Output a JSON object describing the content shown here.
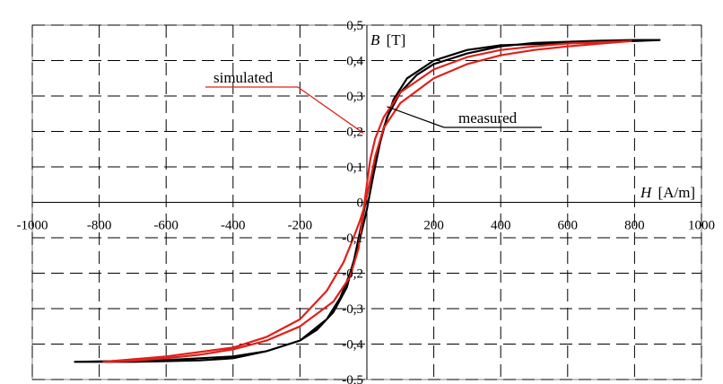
{
  "chart_data": {
    "type": "line",
    "xlabel_var": "H",
    "xlabel_unit": "[A/m]",
    "ylabel_var": "B",
    "ylabel_unit": "[T]",
    "xlim": [
      -1000,
      1000
    ],
    "ylim": [
      -0.5,
      0.5
    ],
    "x_ticks": [
      -1000,
      -800,
      -600,
      -400,
      -200,
      0,
      200,
      400,
      600,
      800,
      1000
    ],
    "x_tick_labels": [
      "-1000",
      "-800",
      "-600",
      "-400",
      "-200",
      "0",
      "200",
      "400",
      "600",
      "800",
      "1000"
    ],
    "y_ticks": [
      -0.5,
      -0.4,
      -0.3,
      -0.2,
      -0.1,
      0,
      0.1,
      0.2,
      0.3,
      0.4,
      0.5
    ],
    "y_tick_labels": [
      "-0,5",
      "-0,4",
      "-0,3",
      "-0,2",
      "-0,1",
      "0",
      "0,1",
      "0,2",
      "0,3",
      "0,4",
      "0,5"
    ],
    "grid": true,
    "grid_style": "dashed",
    "annotations": [
      {
        "text": "simulated",
        "series": "simulated"
      },
      {
        "text": "measured",
        "series": "measured"
      }
    ],
    "series": [
      {
        "name": "measured",
        "color": "#000000",
        "x": [
          -875,
          -600,
          -400,
          -300,
          -200,
          -120,
          -80,
          -50,
          -25,
          -10,
          0,
          10,
          20,
          40,
          60,
          100,
          150,
          200,
          300,
          400,
          500,
          600,
          700,
          800,
          875,
          800,
          600,
          400,
          300,
          200,
          120,
          80,
          50,
          25,
          10,
          0,
          -10,
          -20,
          -40,
          -60,
          -100,
          -150,
          -200,
          -300,
          -400,
          -500,
          -600,
          -700,
          -800,
          -875
        ],
        "y": [
          -0.45,
          -0.445,
          -0.435,
          -0.42,
          -0.39,
          -0.33,
          -0.27,
          -0.2,
          -0.12,
          -0.06,
          -0.02,
          0.03,
          0.08,
          0.17,
          0.24,
          0.31,
          0.36,
          0.39,
          0.42,
          0.44,
          0.45,
          0.453,
          0.456,
          0.458,
          0.458,
          0.455,
          0.45,
          0.443,
          0.43,
          0.4,
          0.35,
          0.29,
          0.21,
          0.12,
          0.06,
          0.02,
          -0.03,
          -0.08,
          -0.17,
          -0.24,
          -0.31,
          -0.36,
          -0.39,
          -0.42,
          -0.44,
          -0.446,
          -0.448,
          -0.45,
          -0.45,
          -0.45
        ]
      },
      {
        "name": "simulated",
        "color": "#e0201a",
        "x": [
          -790,
          -600,
          -400,
          -300,
          -200,
          -120,
          -70,
          -40,
          -20,
          -10,
          0,
          10,
          25,
          50,
          100,
          200,
          300,
          400,
          500,
          600,
          700,
          790,
          700,
          600,
          500,
          400,
          300,
          200,
          100,
          50,
          25,
          10,
          0,
          -10,
          -25,
          -50,
          -100,
          -200,
          -300,
          -400,
          -500,
          -600,
          -700,
          -790
        ],
        "y": [
          -0.45,
          -0.435,
          -0.41,
          -0.38,
          -0.33,
          -0.25,
          -0.17,
          -0.1,
          -0.05,
          -0.02,
          0.02,
          0.06,
          0.13,
          0.21,
          0.28,
          0.35,
          0.39,
          0.415,
          0.43,
          0.44,
          0.448,
          0.455,
          0.452,
          0.448,
          0.44,
          0.43,
          0.41,
          0.375,
          0.31,
          0.24,
          0.18,
          0.12,
          0.05,
          -0.02,
          -0.13,
          -0.21,
          -0.28,
          -0.35,
          -0.39,
          -0.415,
          -0.43,
          -0.44,
          -0.447,
          -0.45
        ]
      }
    ]
  }
}
